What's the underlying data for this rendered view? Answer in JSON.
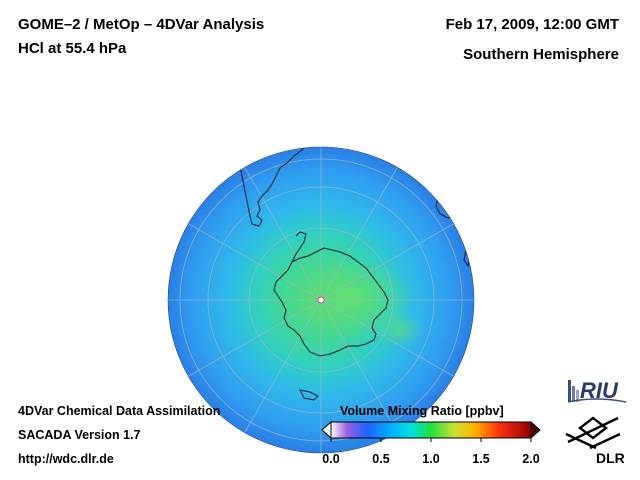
{
  "header": {
    "instrument": "GOME–2 / MetOp – 4DVar Analysis",
    "parameter": "HCl at 55.4 hPa",
    "datetime": "Feb 17, 2009, 12:00 GMT",
    "region": "Southern Hemisphere"
  },
  "footer": {
    "line1": "4DVar Chemical Data Assimilation",
    "line2": "SACADA Version 1.7",
    "line3": "http://wdc.dlr.de"
  },
  "colorbar": {
    "title": "Volume Mixing Ratio [ppbv]",
    "ticks": [
      "0.0",
      "0.5",
      "1.0",
      "1.5",
      "2.0"
    ],
    "range": [
      0.0,
      2.0
    ],
    "colors": [
      "#ffffff",
      "#8a2be2",
      "#1e5aff",
      "#00c8ff",
      "#00e0a0",
      "#3cdc3c",
      "#e6e632",
      "#ffa000",
      "#ff2020",
      "#8b0000"
    ]
  },
  "logos": {
    "riu": "RIU",
    "dlr": "DLR"
  },
  "map": {
    "projection": "orthographic polar",
    "field_color_background": "#3a9ff0",
    "field_color_core": "#4fd27a"
  }
}
